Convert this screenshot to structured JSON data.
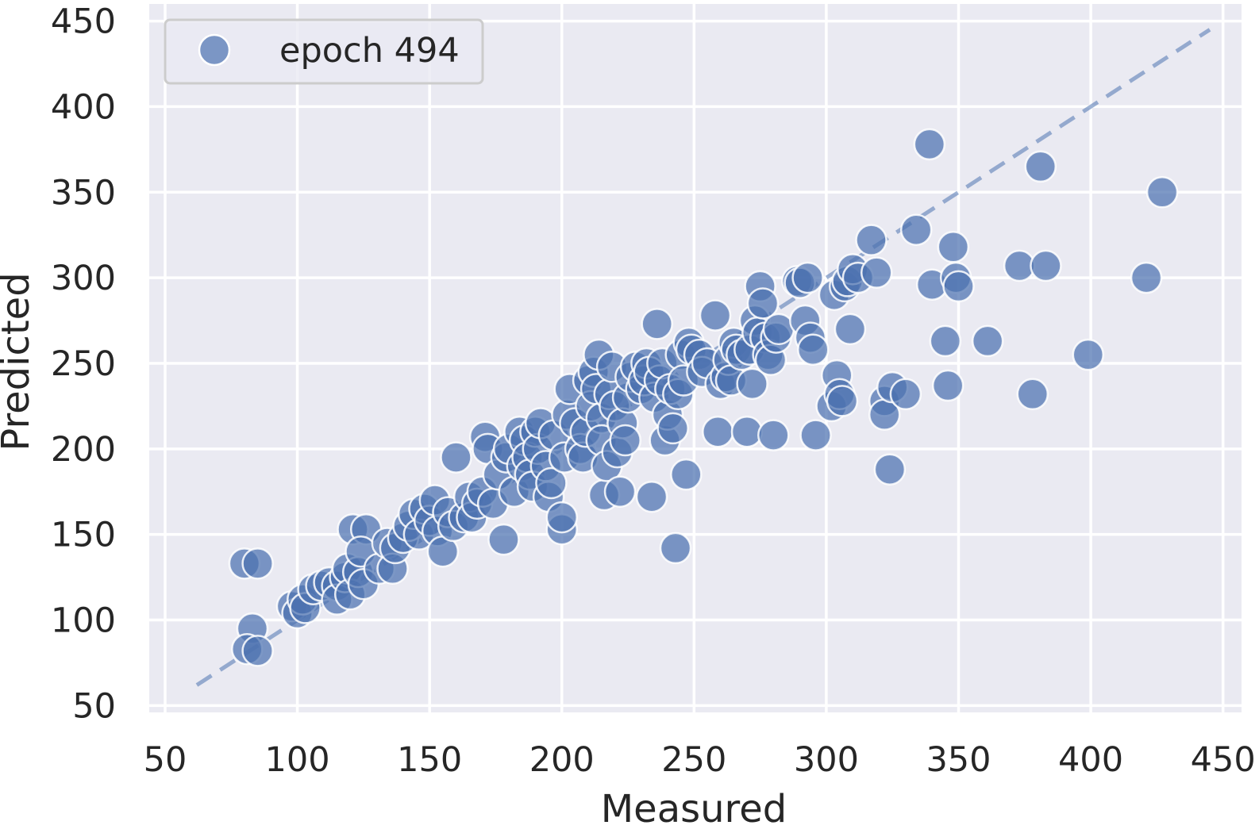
{
  "chart_data": {
    "type": "scatter",
    "title": "",
    "xlabel": "Measured",
    "ylabel": "Predicted",
    "xlim": [
      44,
      457
    ],
    "ylim": [
      46,
      460
    ],
    "xticks": [
      50,
      100,
      150,
      200,
      250,
      300,
      350,
      400,
      450
    ],
    "yticks": [
      50,
      100,
      150,
      200,
      250,
      300,
      350,
      400,
      450
    ],
    "grid": true,
    "legend_position": "top-left",
    "reference_line": {
      "style": "dashed",
      "x": [
        62,
        445
      ],
      "y": [
        62,
        445
      ]
    },
    "series": [
      {
        "name": "epoch 494",
        "color": "#4c72b0",
        "points": [
          [
            80,
            133
          ],
          [
            85,
            133
          ],
          [
            83,
            95
          ],
          [
            81,
            83
          ],
          [
            85,
            82
          ],
          [
            98,
            108
          ],
          [
            100,
            104
          ],
          [
            102,
            112
          ],
          [
            103,
            107
          ],
          [
            106,
            118
          ],
          [
            109,
            120
          ],
          [
            112,
            122
          ],
          [
            115,
            120
          ],
          [
            115,
            112
          ],
          [
            118,
            125
          ],
          [
            119,
            130
          ],
          [
            120,
            115
          ],
          [
            121,
            153
          ],
          [
            123,
            128
          ],
          [
            125,
            121
          ],
          [
            126,
            153
          ],
          [
            124,
            140
          ],
          [
            131,
            130
          ],
          [
            134,
            145
          ],
          [
            136,
            130
          ],
          [
            137,
            142
          ],
          [
            140,
            148
          ],
          [
            142,
            155
          ],
          [
            144,
            162
          ],
          [
            146,
            150
          ],
          [
            148,
            165
          ],
          [
            150,
            158
          ],
          [
            152,
            170
          ],
          [
            153,
            152
          ],
          [
            155,
            140
          ],
          [
            157,
            163
          ],
          [
            159,
            155
          ],
          [
            160,
            195
          ],
          [
            163,
            160
          ],
          [
            165,
            172
          ],
          [
            166,
            160
          ],
          [
            168,
            168
          ],
          [
            170,
            175
          ],
          [
            171,
            207
          ],
          [
            172,
            200
          ],
          [
            174,
            168
          ],
          [
            176,
            185
          ],
          [
            178,
            147
          ],
          [
            179,
            195
          ],
          [
            180,
            200
          ],
          [
            182,
            175
          ],
          [
            184,
            210
          ],
          [
            185,
            190
          ],
          [
            186,
            205
          ],
          [
            187,
            195
          ],
          [
            188,
            185
          ],
          [
            189,
            178
          ],
          [
            190,
            210
          ],
          [
            191,
            200
          ],
          [
            192,
            215
          ],
          [
            194,
            190
          ],
          [
            195,
            172
          ],
          [
            196,
            180
          ],
          [
            197,
            208
          ],
          [
            200,
            153
          ],
          [
            200,
            160
          ],
          [
            201,
            195
          ],
          [
            202,
            220
          ],
          [
            203,
            235
          ],
          [
            205,
            215
          ],
          [
            207,
            200
          ],
          [
            208,
            195
          ],
          [
            209,
            210
          ],
          [
            210,
            240
          ],
          [
            211,
            225
          ],
          [
            212,
            245
          ],
          [
            213,
            235
          ],
          [
            214,
            255
          ],
          [
            215,
            218
          ],
          [
            215,
            205
          ],
          [
            216,
            173
          ],
          [
            217,
            190
          ],
          [
            218,
            232
          ],
          [
            219,
            248
          ],
          [
            220,
            225
          ],
          [
            221,
            198
          ],
          [
            222,
            175
          ],
          [
            223,
            215
          ],
          [
            224,
            205
          ],
          [
            225,
            230
          ],
          [
            226,
            242
          ],
          [
            228,
            248
          ],
          [
            230,
            235
          ],
          [
            231,
            240
          ],
          [
            232,
            250
          ],
          [
            233,
            245
          ],
          [
            234,
            172
          ],
          [
            235,
            230
          ],
          [
            236,
            273
          ],
          [
            237,
            240
          ],
          [
            238,
            250
          ],
          [
            239,
            205
          ],
          [
            240,
            220
          ],
          [
            241,
            235
          ],
          [
            242,
            212
          ],
          [
            243,
            142
          ],
          [
            244,
            232
          ],
          [
            245,
            255
          ],
          [
            246,
            240
          ],
          [
            247,
            185
          ],
          [
            248,
            262
          ],
          [
            249,
            258
          ],
          [
            252,
            255
          ],
          [
            253,
            245
          ],
          [
            255,
            250
          ],
          [
            258,
            278
          ],
          [
            259,
            210
          ],
          [
            260,
            238
          ],
          [
            262,
            242
          ],
          [
            263,
            252
          ],
          [
            264,
            240
          ],
          [
            265,
            262
          ],
          [
            266,
            258
          ],
          [
            268,
            255
          ],
          [
            270,
            210
          ],
          [
            271,
            258
          ],
          [
            272,
            238
          ],
          [
            273,
            275
          ],
          [
            274,
            268
          ],
          [
            275,
            295
          ],
          [
            276,
            285
          ],
          [
            277,
            265
          ],
          [
            278,
            255
          ],
          [
            279,
            252
          ],
          [
            280,
            208
          ],
          [
            281,
            265
          ],
          [
            282,
            270
          ],
          [
            289,
            298
          ],
          [
            290,
            297
          ],
          [
            292,
            275
          ],
          [
            293,
            300
          ],
          [
            294,
            265
          ],
          [
            295,
            258
          ],
          [
            296,
            208
          ],
          [
            302,
            225
          ],
          [
            303,
            290
          ],
          [
            304,
            243
          ],
          [
            305,
            232
          ],
          [
            306,
            228
          ],
          [
            307,
            295
          ],
          [
            308,
            298
          ],
          [
            309,
            270
          ],
          [
            310,
            305
          ],
          [
            312,
            300
          ],
          [
            317,
            322
          ],
          [
            319,
            303
          ],
          [
            322,
            228
          ],
          [
            322,
            220
          ],
          [
            324,
            188
          ],
          [
            325,
            236
          ],
          [
            330,
            232
          ],
          [
            334,
            328
          ],
          [
            339,
            378
          ],
          [
            340,
            296
          ],
          [
            345,
            263
          ],
          [
            346,
            237
          ],
          [
            348,
            318
          ],
          [
            349,
            300
          ],
          [
            350,
            295
          ],
          [
            361,
            263
          ],
          [
            373,
            307
          ],
          [
            378,
            232
          ],
          [
            381,
            365
          ],
          [
            383,
            307
          ],
          [
            399,
            255
          ],
          [
            421,
            300
          ],
          [
            427,
            350
          ]
        ]
      }
    ]
  }
}
